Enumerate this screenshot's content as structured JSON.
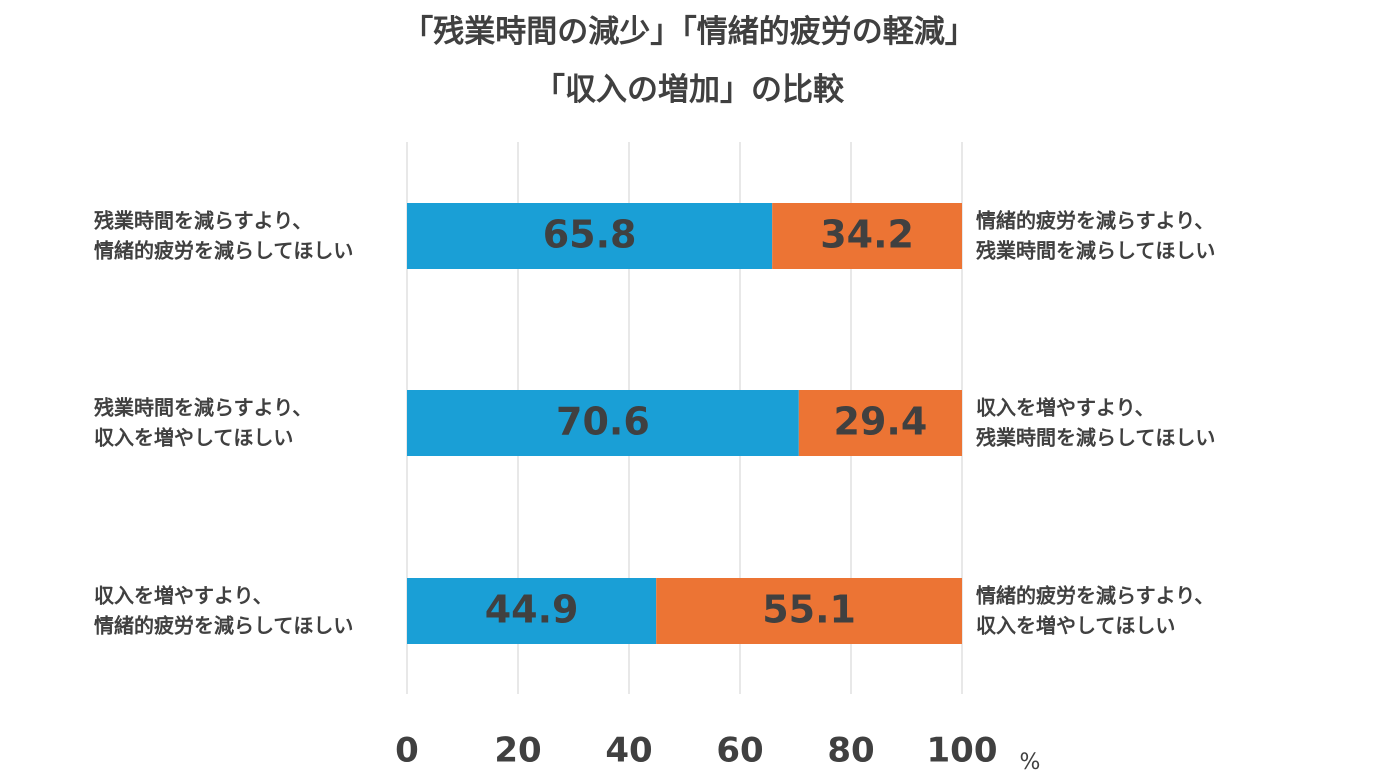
{
  "chart_data": {
    "type": "bar",
    "orientation": "horizontal",
    "stacked": true,
    "title_lines": [
      "「残業時間の減少」「情緒的疲労の軽減」",
      "「収入の増加」の比較"
    ],
    "x_ticks": [
      "0",
      "20",
      "40",
      "60",
      "80",
      "100"
    ],
    "x_unit": "%",
    "xlim": [
      0,
      100
    ],
    "grid": true,
    "rows": [
      {
        "left_label": [
          "残業時間を減らすより、",
          "情緒的疲労を減らしてほしい"
        ],
        "right_label": [
          "情緒的疲労を減らすより、",
          "残業時間を減らしてほしい"
        ],
        "left_value": 65.8,
        "right_value": 34.2,
        "left_value_label": "65.8",
        "right_value_label": "34.2"
      },
      {
        "left_label": [
          "残業時間を減らすより、",
          "収入を増やしてほしい"
        ],
        "right_label": [
          "収入を増やすより、",
          "残業時間を減らしてほしい"
        ],
        "left_value": 70.6,
        "right_value": 29.4,
        "left_value_label": "70.6",
        "right_value_label": "29.4"
      },
      {
        "left_label": [
          "収入を増やすより、",
          "情緒的疲労を減らしてほしい"
        ],
        "right_label": [
          "情緒的疲労を減らすより、",
          "収入を増やしてほしい"
        ],
        "left_value": 44.9,
        "right_value": 55.1,
        "left_value_label": "44.9",
        "right_value_label": "55.1"
      }
    ],
    "colors": {
      "left_series": "#1a9fd6",
      "right_series": "#ec7434",
      "gridline": "#d9d9d9",
      "text": "#404040"
    }
  }
}
